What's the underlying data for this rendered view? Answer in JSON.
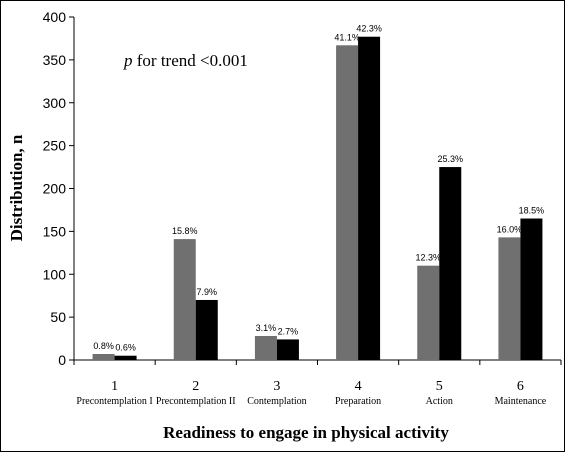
{
  "chart_data": {
    "type": "bar",
    "title": "",
    "xlabel": "Readiness to engage in physical activity",
    "ylabel": "Distribution, n",
    "ylim": [
      0,
      400
    ],
    "yticks": [
      0,
      50,
      100,
      150,
      200,
      250,
      300,
      350,
      400
    ],
    "grid": false,
    "legend": "none",
    "annotation": {
      "italic": "p",
      "text": " for trend <0.001"
    },
    "categories": [
      {
        "num": "1",
        "name": "Precontemplation I"
      },
      {
        "num": "2",
        "name": "Precontemplation II"
      },
      {
        "num": "3",
        "name": "Contemplation"
      },
      {
        "num": "4",
        "name": "Preparation"
      },
      {
        "num": "5",
        "name": "Action"
      },
      {
        "num": "6",
        "name": "Maintenance"
      }
    ],
    "series": [
      {
        "color": "#707070",
        "values": [
          7,
          141,
          28,
          367,
          110,
          143
        ],
        "labels": [
          "0.8%",
          "15.8%",
          "3.1%",
          "41.1%",
          "12.3%",
          "16.0%"
        ]
      },
      {
        "color": "#000000",
        "values": [
          5,
          70,
          24,
          377,
          225,
          165
        ],
        "labels": [
          "0.6%",
          "7.9%",
          "2.7%",
          "42.3%",
          "25.3%",
          "18.5%"
        ]
      }
    ]
  }
}
